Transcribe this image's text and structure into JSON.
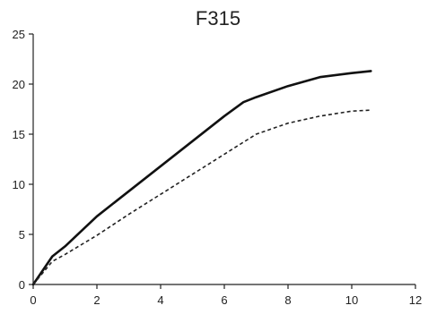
{
  "chart_data": {
    "type": "line",
    "title": "F315",
    "xlabel": "",
    "ylabel": "",
    "xlim": [
      0,
      12
    ],
    "ylim": [
      0,
      25
    ],
    "x_ticks": [
      0,
      2,
      4,
      6,
      8,
      10,
      12
    ],
    "y_ticks": [
      0,
      5,
      10,
      15,
      20,
      25
    ],
    "x_tick_labels": [
      "0",
      "2",
      "4",
      "6",
      "8",
      "10",
      "12"
    ],
    "y_tick_labels": [
      "0",
      "5",
      "10",
      "15",
      "20",
      "25"
    ],
    "grid": false,
    "legend": "none",
    "series": [
      {
        "style": "solid",
        "color": "#111111",
        "points": [
          [
            0,
            0
          ],
          [
            0.6,
            2.8
          ],
          [
            1.0,
            3.8
          ],
          [
            2.0,
            6.8
          ],
          [
            3.0,
            9.3
          ],
          [
            4.0,
            11.8
          ],
          [
            5.0,
            14.3
          ],
          [
            6.0,
            16.8
          ],
          [
            6.6,
            18.2
          ],
          [
            7.0,
            18.7
          ],
          [
            8.0,
            19.8
          ],
          [
            9.0,
            20.7
          ],
          [
            10.0,
            21.1
          ],
          [
            10.6,
            21.3
          ]
        ]
      },
      {
        "style": "dashed",
        "color": "#222222",
        "points": [
          [
            0,
            0
          ],
          [
            0.6,
            2.3
          ],
          [
            1.0,
            3.0
          ],
          [
            2.0,
            4.9
          ],
          [
            3.0,
            7.0
          ],
          [
            4.0,
            9.0
          ],
          [
            5.0,
            11.0
          ],
          [
            6.0,
            13.0
          ],
          [
            7.0,
            15.0
          ],
          [
            8.0,
            16.1
          ],
          [
            9.0,
            16.8
          ],
          [
            10.0,
            17.3
          ],
          [
            10.6,
            17.4
          ]
        ]
      }
    ]
  }
}
